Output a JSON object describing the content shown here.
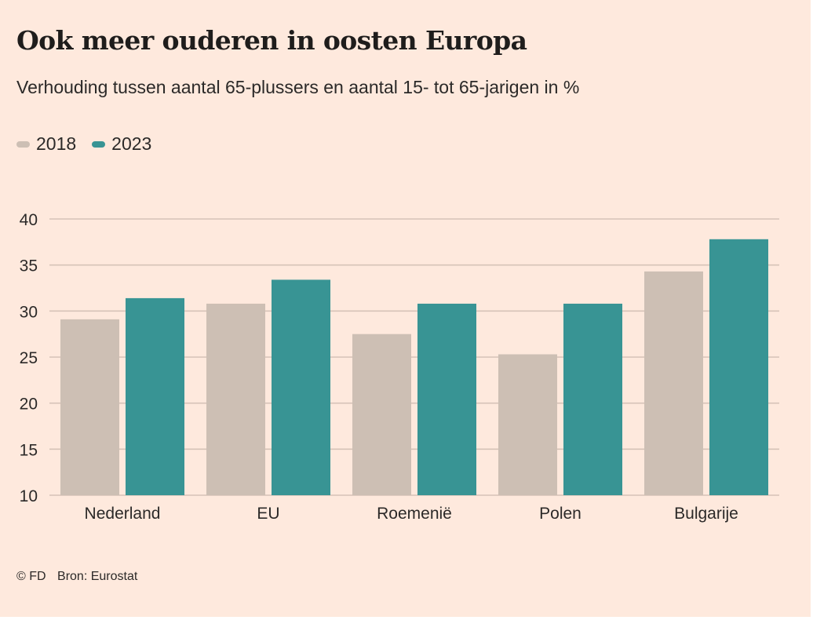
{
  "header": {
    "title": "Ook meer ouderen in oosten Europa",
    "subtitle": "Verhouding tussen aantal 65-plussers en aantal 15- tot 65-jarigen in %"
  },
  "legend": [
    {
      "label": "2018",
      "color": "#cdbfb4"
    },
    {
      "label": "2023",
      "color": "#389494"
    }
  ],
  "footer": {
    "copyright": "© FD",
    "source": "Bron: Eurostat"
  },
  "colors": {
    "background": "#fee9dd",
    "grid": "#d6c3b8",
    "text": "#2b2928"
  },
  "chart_data": {
    "type": "bar",
    "title": "Ook meer ouderen in oosten Europa",
    "subtitle": "Verhouding tussen aantal 65-plussers en aantal 15- tot 65-jarigen in %",
    "xlabel": "",
    "ylabel": "",
    "categories": [
      "Nederland",
      "EU",
      "Roemenië",
      "Polen",
      "Bulgarije"
    ],
    "series": [
      {
        "name": "2018",
        "values": [
          29.1,
          30.8,
          27.5,
          25.3,
          34.3
        ]
      },
      {
        "name": "2023",
        "values": [
          31.4,
          33.4,
          30.8,
          30.8,
          37.8
        ]
      }
    ],
    "ylim": [
      10,
      40
    ],
    "yticks": [
      10,
      15,
      20,
      25,
      30,
      35,
      40
    ],
    "grid": true,
    "legend_position": "top-left",
    "source": "Bron: Eurostat"
  }
}
